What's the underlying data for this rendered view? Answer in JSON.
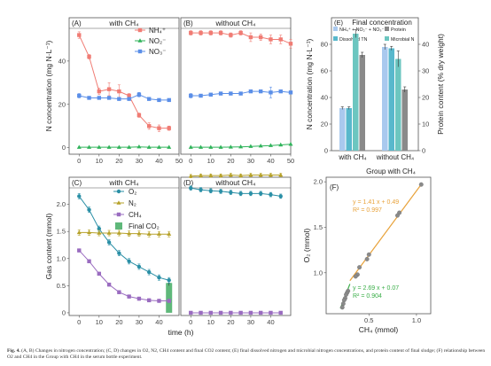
{
  "caption": {
    "label": "Fig. 4.",
    "text": "(A, B) Changes in nitrogen concentration; (C, D) changes in O2, N2, CH4 content and final CO2 content; (E) final dissolved nitrogen and microbial nitrogen concentrations, and protein content of final sludge; (F) relationship between O2 and CH4 in the Group with CH4 in the serum bottle experiment."
  },
  "colors": {
    "nh4": "#f07c74",
    "no2": "#2fb35a",
    "no3": "#5b8fe8",
    "o2": "#2a8fa6",
    "n2": "#b6a128",
    "ch4": "#9a6cc0",
    "co2": "#5fb87a",
    "e_nsum": "#a9c9ee",
    "e_dtn": "#58b8cc",
    "e_protein": "#8a8a8a",
    "e_micro": "#6cc6c0",
    "f_upper": "#e8a23a",
    "f_lower": "#3aae48"
  },
  "chart_data": [
    {
      "id": "A",
      "type": "line",
      "panel_label": "(A)",
      "title": "with CH₄",
      "ylabel": "N concentration (mg N·L⁻¹)",
      "xlim": [
        -5,
        50
      ],
      "ylim": [
        -3,
        60
      ],
      "xticks": [
        0,
        10,
        20,
        30,
        40,
        50
      ],
      "yticks": [
        0,
        20,
        40
      ],
      "legend": [
        "NH₄⁺",
        "NO₂⁻",
        "NO₃⁻"
      ],
      "series": [
        {
          "name": "NH₄⁺",
          "color_key": "nh4",
          "marker": "square",
          "x": [
            0,
            5,
            10,
            15,
            20,
            25,
            30,
            35,
            40,
            45
          ],
          "y": [
            52,
            42,
            26,
            27,
            26,
            24,
            15,
            10,
            9,
            9
          ],
          "err": [
            1.5,
            1,
            1.5,
            3,
            3,
            1,
            1,
            1.5,
            1.5,
            1
          ]
        },
        {
          "name": "NO₂⁻",
          "color_key": "no2",
          "marker": "triangle",
          "x": [
            0,
            5,
            10,
            15,
            20,
            25,
            30,
            35,
            40,
            45
          ],
          "y": [
            0.2,
            0.2,
            0.2,
            0.2,
            0.2,
            0.2,
            0.4,
            0.2,
            0.2,
            0.2
          ],
          "err": [
            0,
            0,
            0,
            0,
            0,
            0,
            0,
            0,
            0,
            0
          ]
        },
        {
          "name": "NO₃⁻",
          "color_key": "no3",
          "marker": "square",
          "x": [
            0,
            5,
            10,
            15,
            20,
            25,
            30,
            35,
            40,
            45
          ],
          "y": [
            24,
            23,
            23,
            23,
            22.5,
            22.5,
            24.5,
            22.5,
            22,
            22
          ],
          "err": [
            1,
            0.6,
            0.6,
            0.6,
            0.6,
            0.6,
            1,
            0.6,
            0.6,
            0.6
          ]
        }
      ]
    },
    {
      "id": "B",
      "type": "line",
      "panel_label": "(B)",
      "title": "without CH₄",
      "xlim": [
        -5,
        50
      ],
      "ylim": [
        -3,
        60
      ],
      "xticks": [
        0,
        10,
        20,
        30,
        40,
        50
      ],
      "series": [
        {
          "name": "NH₄⁺",
          "color_key": "nh4",
          "marker": "square",
          "x": [
            0,
            5,
            10,
            15,
            20,
            25,
            30,
            35,
            40,
            45,
            50
          ],
          "y": [
            53,
            53,
            53,
            53,
            52,
            53,
            51,
            51,
            50,
            50,
            48
          ],
          "err": [
            1,
            1,
            1,
            1,
            1,
            1,
            2,
            1.5,
            2,
            2,
            2
          ]
        },
        {
          "name": "NO₂⁻",
          "color_key": "no2",
          "marker": "triangle",
          "x": [
            0,
            5,
            10,
            15,
            20,
            25,
            30,
            35,
            40,
            45,
            50
          ],
          "y": [
            0.2,
            0.2,
            0.2,
            0.2,
            0.3,
            0.4,
            0.6,
            0.8,
            1.0,
            1.3,
            1.6
          ],
          "err": [
            0,
            0,
            0,
            0,
            0,
            0,
            0,
            0,
            0,
            0,
            0
          ]
        },
        {
          "name": "NO₃⁻",
          "color_key": "no3",
          "marker": "square",
          "x": [
            0,
            5,
            10,
            15,
            20,
            25,
            30,
            35,
            40,
            45,
            50
          ],
          "y": [
            24,
            24,
            24.5,
            25,
            25,
            25,
            26,
            26,
            25.5,
            26,
            25.5
          ],
          "err": [
            1,
            0.6,
            0.6,
            0.6,
            0.6,
            0.6,
            0.6,
            0.6,
            2.5,
            0.6,
            0.6
          ]
        }
      ]
    },
    {
      "id": "C",
      "type": "line",
      "panel_label": "(C)",
      "title": "with CH₄",
      "ylabel": "Gas content (mmol)",
      "xlabel": "time (h)",
      "xlim": [
        -5,
        50
      ],
      "ylim": [
        -0.05,
        2.5
      ],
      "xticks": [
        0,
        10,
        20,
        30,
        40
      ],
      "yticks": [
        0,
        0.5,
        1.0,
        1.5,
        2.0
      ],
      "legend": [
        "O₂",
        "N₂",
        "CH₄",
        "Final CO₂"
      ],
      "series": [
        {
          "name": "O₂",
          "color_key": "o2",
          "marker": "circle",
          "x": [
            0,
            5,
            10,
            15,
            20,
            25,
            30,
            35,
            40,
            45
          ],
          "y": [
            2.15,
            1.9,
            1.55,
            1.3,
            1.1,
            0.95,
            0.85,
            0.75,
            0.65,
            0.6
          ],
          "err": [
            0.05,
            0.05,
            0.05,
            0.05,
            0.05,
            0.05,
            0.05,
            0.05,
            0.05,
            0.05
          ]
        },
        {
          "name": "N₂",
          "color_key": "n2",
          "marker": "triangle",
          "x": [
            0,
            5,
            10,
            15,
            20,
            25,
            30,
            35,
            40,
            45
          ],
          "y": [
            1.48,
            1.48,
            1.47,
            1.47,
            1.47,
            1.46,
            1.46,
            1.45,
            1.45,
            1.45
          ],
          "err": [
            0.05,
            0.05,
            0.05,
            0.05,
            0.05,
            0.05,
            0.05,
            0.05,
            0.05,
            0.05
          ]
        },
        {
          "name": "CH₄",
          "color_key": "ch4",
          "marker": "square",
          "x": [
            0,
            5,
            10,
            15,
            20,
            25,
            30,
            35,
            40,
            45
          ],
          "y": [
            1.15,
            0.95,
            0.72,
            0.52,
            0.38,
            0.3,
            0.26,
            0.23,
            0.22,
            0.22
          ],
          "err": [
            0.03,
            0.03,
            0.03,
            0.03,
            0.03,
            0.03,
            0.03,
            0.03,
            0.03,
            0.03
          ]
        }
      ],
      "bar": {
        "name": "Final CO₂",
        "color_key": "co2",
        "x": 45,
        "value": 0.55,
        "err": 0.05
      }
    },
    {
      "id": "D",
      "type": "line",
      "panel_label": "(D)",
      "title": "without CH₄",
      "xlim": [
        -5,
        50
      ],
      "ylim": [
        -0.05,
        2.5
      ],
      "xticks": [
        0,
        10,
        20,
        30,
        40
      ],
      "series": [
        {
          "name": "N₂",
          "color_key": "n2",
          "marker": "triangle",
          "x": [
            0,
            5,
            10,
            15,
            20,
            25,
            30,
            35,
            40,
            45
          ],
          "y": [
            2.52,
            2.53,
            2.53,
            2.53,
            2.54,
            2.53,
            2.54,
            2.54,
            2.54,
            2.54
          ],
          "err": [
            0.03,
            0.03,
            0.03,
            0.03,
            0.03,
            0.03,
            0.03,
            0.03,
            0.03,
            0.03
          ]
        },
        {
          "name": "O₂",
          "color_key": "o2",
          "marker": "circle",
          "x": [
            0,
            5,
            10,
            15,
            20,
            25,
            30,
            35,
            40,
            45
          ],
          "y": [
            2.3,
            2.27,
            2.25,
            2.24,
            2.22,
            2.2,
            2.2,
            2.2,
            2.18,
            2.15
          ],
          "err": [
            0.04,
            0.04,
            0.04,
            0.04,
            0.04,
            0.04,
            0.04,
            0.04,
            0.04,
            0.04
          ]
        },
        {
          "name": "CH₄",
          "color_key": "ch4",
          "marker": "square",
          "x": [
            0,
            5,
            10,
            15,
            20,
            25,
            30,
            35,
            40,
            45
          ],
          "y": [
            0,
            0,
            0,
            0,
            0,
            0,
            0,
            0,
            0,
            0
          ],
          "err": [
            0,
            0,
            0,
            0,
            0,
            0,
            0,
            0,
            0,
            0
          ]
        }
      ]
    },
    {
      "id": "E",
      "type": "bar",
      "panel_label": "(E)",
      "title": "Final concentration",
      "ylabel": "N concentration (mg N·L⁻¹)",
      "y2label": "Protein content (% dry weight)",
      "categories": [
        "with CH₄",
        "without CH₄"
      ],
      "ylim": [
        0,
        100
      ],
      "yticks": [
        0,
        20,
        40,
        60,
        80
      ],
      "y2lim": [
        0,
        50
      ],
      "y2ticks": [
        0,
        10,
        20,
        30,
        40
      ],
      "legend": [
        "NH₄⁺ + NO₂⁻ + NO₃⁻",
        "Protein",
        "Dissolved TN",
        "Microbial N"
      ],
      "series": [
        {
          "name": "NH₄⁺ + NO₂⁻ + NO₃⁻",
          "color_key": "e_nsum",
          "axis": "left",
          "values": [
            32,
            78
          ],
          "err": [
            1,
            2
          ]
        },
        {
          "name": "Dissolved TN",
          "color_key": "e_dtn",
          "axis": "left",
          "values": [
            32,
            77
          ],
          "err": [
            1,
            1.5
          ]
        },
        {
          "name": "Microbial N",
          "color_key": "e_micro",
          "axis": "left",
          "values": [
            88,
            69
          ],
          "err": [
            3,
            6
          ]
        },
        {
          "name": "Protein",
          "color_key": "e_protein",
          "axis": "right",
          "values": [
            36,
            23
          ],
          "err": [
            1,
            1
          ]
        }
      ]
    },
    {
      "id": "F",
      "type": "scatter",
      "panel_label": "(F)",
      "title": "Group with CH₄",
      "xlabel": "CH₄ (mmol)",
      "ylabel": "O₂ (mmol)",
      "xlim": [
        0.05,
        1.15
      ],
      "ylim": [
        0.55,
        2.05
      ],
      "xticks": [
        0.5,
        1.0
      ],
      "yticks": [
        1.0,
        1.5,
        2.0
      ],
      "fits": [
        {
          "equation": "y = 1.41 x + 0.49",
          "r2": "R² = 0.997",
          "slope": 1.41,
          "intercept": 0.49,
          "x_range": [
            0.3,
            1.05
          ],
          "color_key": "f_upper"
        },
        {
          "equation": "y = 2.69 x + 0.07",
          "r2": "R² = 0.904",
          "slope": 2.69,
          "intercept": 0.07,
          "x_range": [
            0.2,
            0.3
          ],
          "color_key": "f_lower"
        }
      ],
      "points": [
        {
          "x": 1.05,
          "y": 1.97
        },
        {
          "x": 0.82,
          "y": 1.66
        },
        {
          "x": 0.8,
          "y": 1.63
        },
        {
          "x": 0.5,
          "y": 1.2
        },
        {
          "x": 0.48,
          "y": 1.15
        },
        {
          "x": 0.4,
          "y": 1.06
        },
        {
          "x": 0.38,
          "y": 0.98
        },
        {
          "x": 0.36,
          "y": 0.96
        },
        {
          "x": 0.28,
          "y": 0.8
        },
        {
          "x": 0.27,
          "y": 0.78
        },
        {
          "x": 0.26,
          "y": 0.76
        },
        {
          "x": 0.25,
          "y": 0.72
        },
        {
          "x": 0.24,
          "y": 0.7
        },
        {
          "x": 0.23,
          "y": 0.66
        },
        {
          "x": 0.22,
          "y": 0.62
        }
      ]
    }
  ]
}
